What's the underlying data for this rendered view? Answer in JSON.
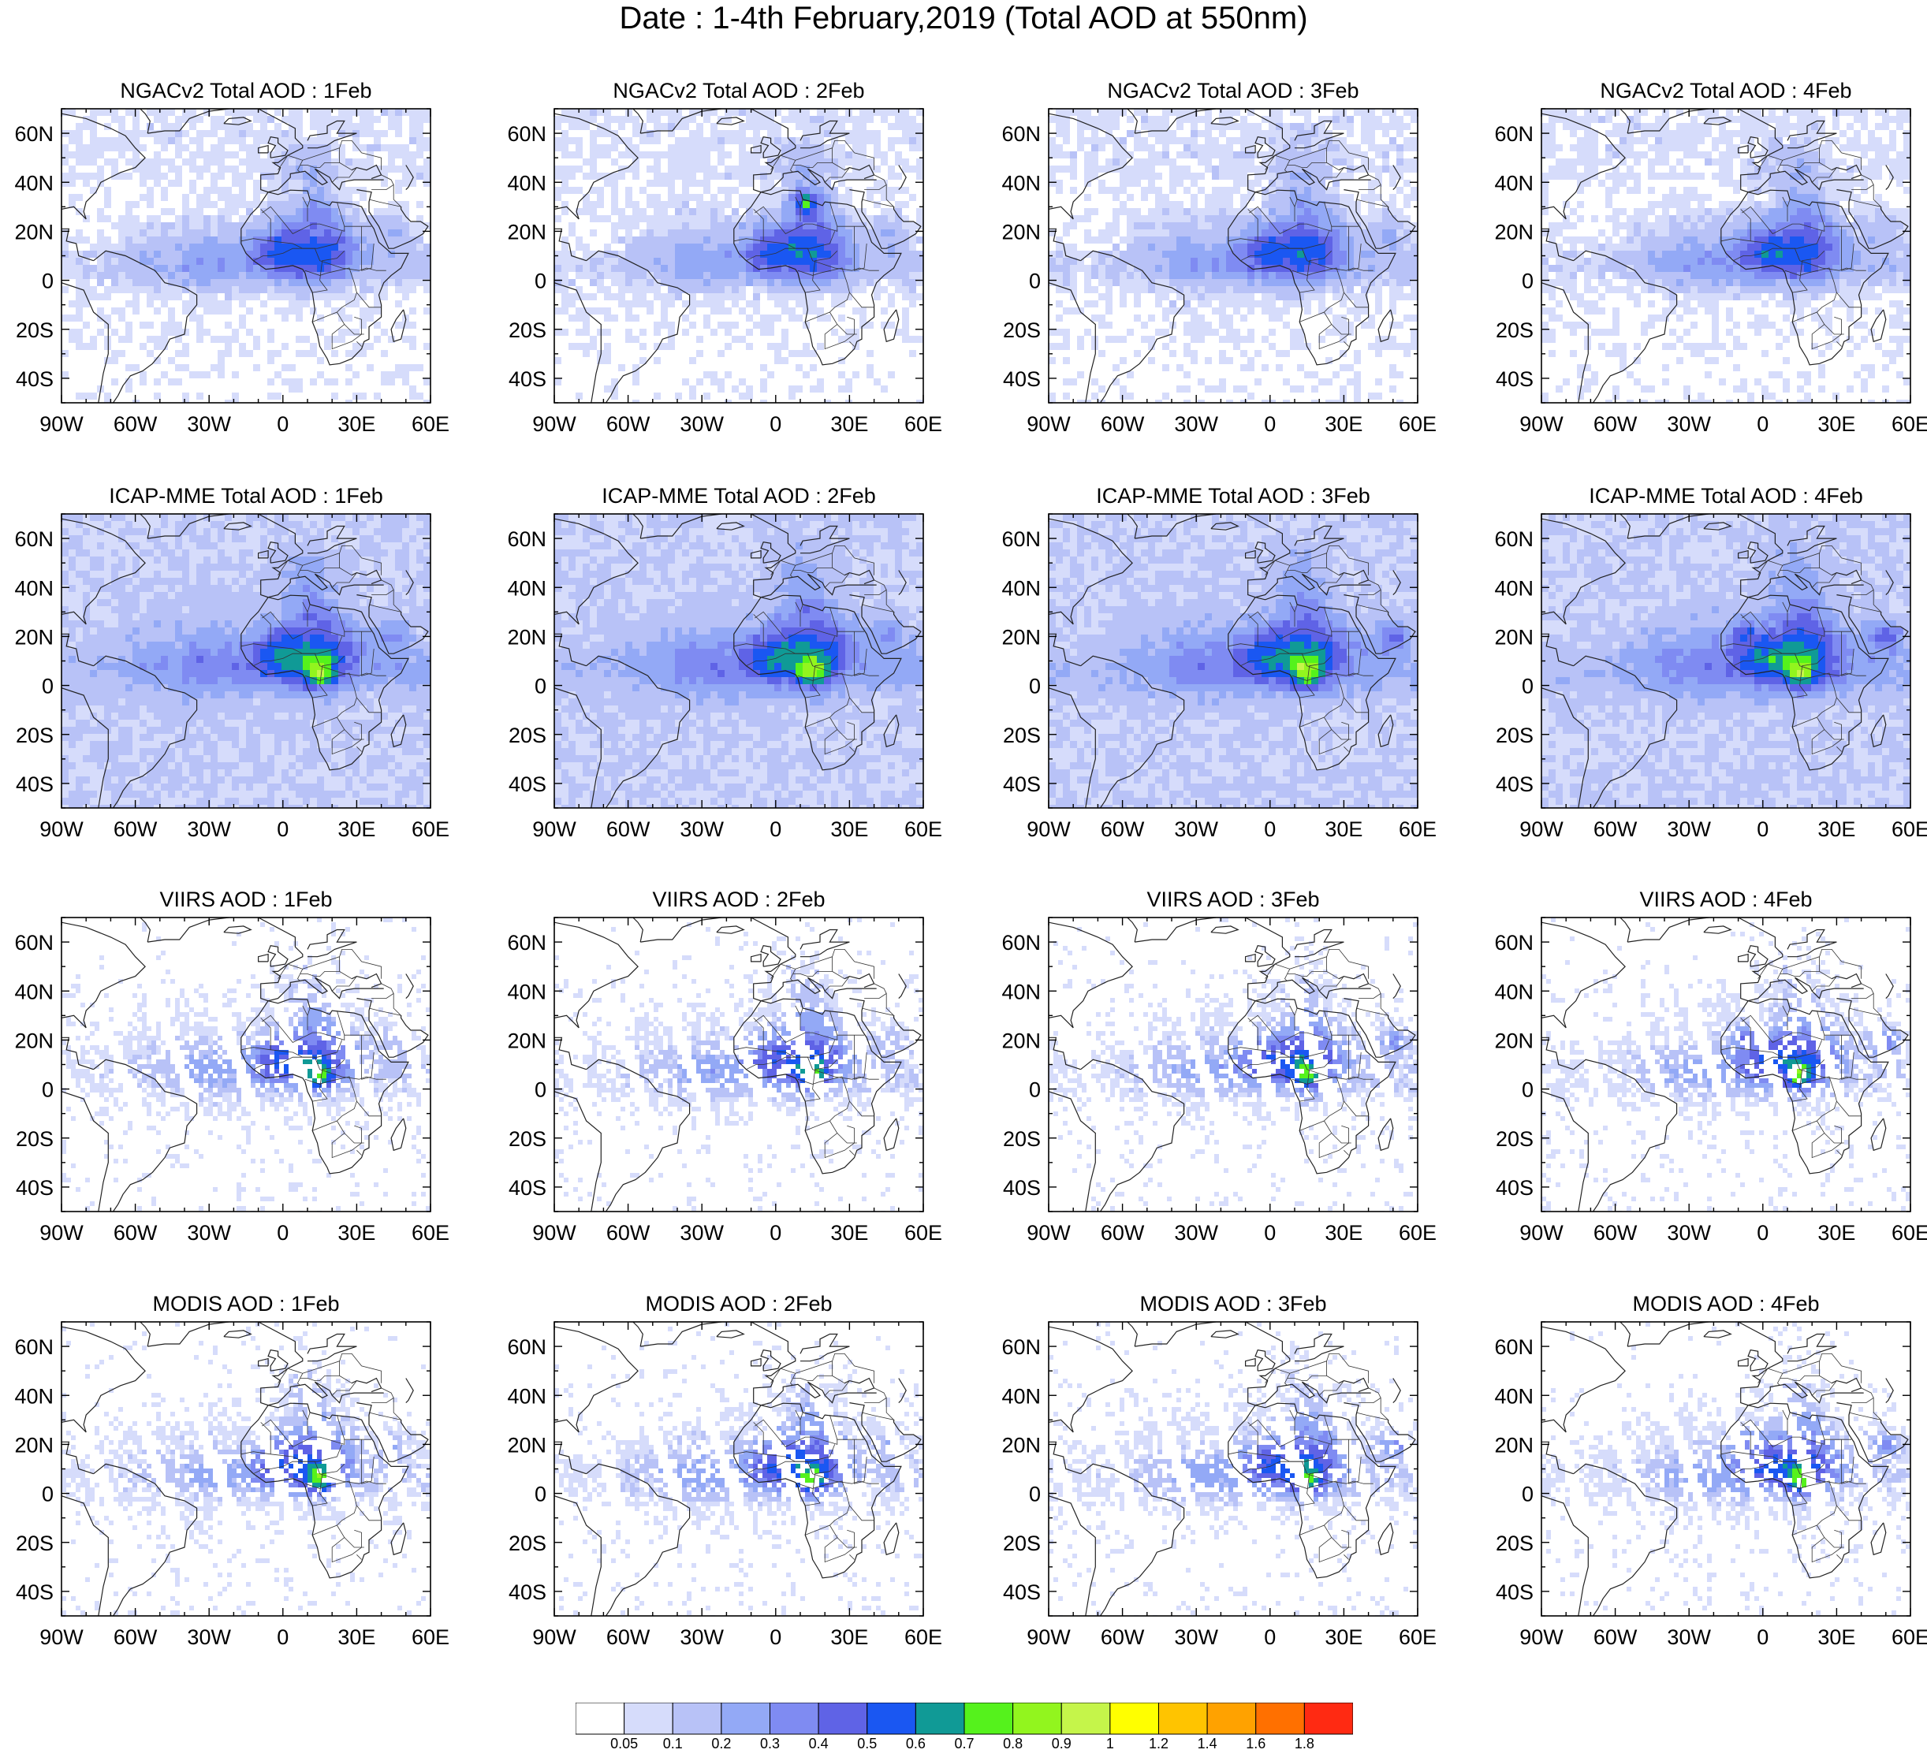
{
  "title": "Date : 1-4th February,2019 (Total AOD at 550nm)",
  "map": {
    "lon_range": [
      -90,
      60
    ],
    "lat_range": [
      -50,
      70
    ],
    "lon_ticks": [
      "90W",
      "60W",
      "30W",
      "0",
      "30E",
      "60E"
    ],
    "lat_ticks": [
      "60N",
      "40N",
      "20N",
      "0",
      "20S",
      "40S"
    ],
    "lon_tick_values": [
      -90,
      -60,
      -30,
      0,
      30,
      60
    ],
    "lat_tick_values": [
      60,
      40,
      20,
      0,
      -20,
      -40
    ]
  },
  "rows": [
    {
      "name": "NGACv2",
      "title_prefix": "NGACv2 Total AOD",
      "panels": [
        {
          "title": "NGACv2 Total AOD : 1Feb"
        },
        {
          "title": "NGACv2 Total AOD : 2Feb"
        },
        {
          "title": "NGACv2 Total AOD : 3Feb"
        },
        {
          "title": "NGACv2 Total AOD : 4Feb"
        }
      ]
    },
    {
      "name": "ICAP-MME",
      "title_prefix": "ICAP-MME Total AOD",
      "panels": [
        {
          "title": "ICAP-MME Total AOD : 1Feb"
        },
        {
          "title": "ICAP-MME Total AOD : 2Feb"
        },
        {
          "title": "ICAP-MME Total AOD : 3Feb"
        },
        {
          "title": "ICAP-MME Total AOD : 4Feb"
        }
      ]
    },
    {
      "name": "VIIRS",
      "title_prefix": "VIIRS AOD",
      "panels": [
        {
          "title": "VIIRS AOD : 1Feb"
        },
        {
          "title": "VIIRS AOD : 2Feb"
        },
        {
          "title": "VIIRS AOD : 3Feb"
        },
        {
          "title": "VIIRS AOD : 4Feb"
        }
      ]
    },
    {
      "name": "MODIS",
      "title_prefix": "MODIS AOD",
      "panels": [
        {
          "title": "MODIS AOD : 1Feb"
        },
        {
          "title": "MODIS AOD : 2Feb"
        },
        {
          "title": "MODIS AOD : 3Feb"
        },
        {
          "title": "MODIS AOD : 4Feb"
        }
      ]
    }
  ],
  "colorbar": {
    "colors": [
      "#ffffff",
      "#d6dcfb",
      "#b8c2f7",
      "#93a9f6",
      "#7f8bf2",
      "#5f63e6",
      "#1a57f2",
      "#109a96",
      "#55f21c",
      "#92f51e",
      "#c5f54a",
      "#ffff00",
      "#ffc400",
      "#ffa200",
      "#ff7000",
      "#ff2a12"
    ],
    "labels": [
      "0.05",
      "0.1",
      "0.2",
      "0.3",
      "0.4",
      "0.5",
      "0.6",
      "0.7",
      "0.8",
      "0.9",
      "1",
      "1.2",
      "1.4",
      "1.6",
      "1.8"
    ]
  },
  "chart_data": {
    "type": "heatmap",
    "title": "Date : 1-4th February,2019 (Total AOD at 550nm)",
    "xlabel": "",
    "ylabel": "",
    "x_range": [
      -90,
      60
    ],
    "y_range": [
      -50,
      70
    ],
    "legend": "bottom",
    "color_levels": [
      0.05,
      0.1,
      0.2,
      0.3,
      0.4,
      0.5,
      0.6,
      0.7,
      0.8,
      0.9,
      1,
      1.2,
      1.4,
      1.6,
      1.8
    ],
    "panels": [
      "NGACv2 Total AOD : 1Feb",
      "NGACv2 Total AOD : 2Feb",
      "NGACv2 Total AOD : 3Feb",
      "NGACv2 Total AOD : 4Feb",
      "ICAP-MME Total AOD : 1Feb",
      "ICAP-MME Total AOD : 2Feb",
      "ICAP-MME Total AOD : 3Feb",
      "ICAP-MME Total AOD : 4Feb",
      "VIIRS AOD : 1Feb",
      "VIIRS AOD : 2Feb",
      "VIIRS AOD : 3Feb",
      "VIIRS AOD : 4Feb",
      "MODIS AOD : 1Feb",
      "MODIS AOD : 2Feb",
      "MODIS AOD : 3Feb",
      "MODIS AOD : 4Feb"
    ]
  }
}
